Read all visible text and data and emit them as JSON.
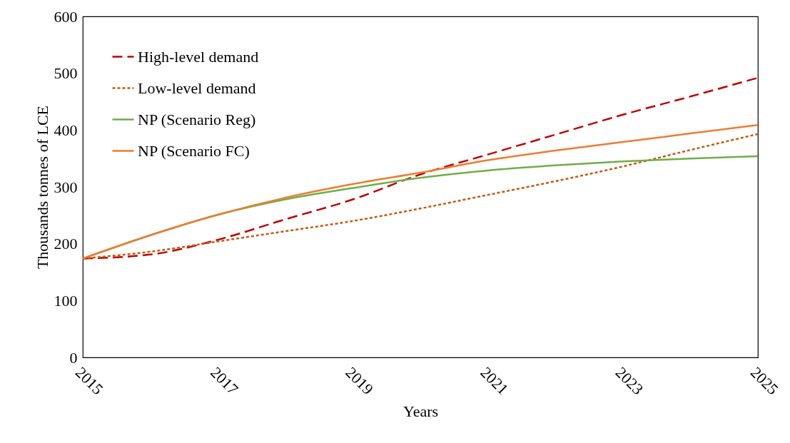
{
  "chart_data": {
    "type": "line",
    "xlabel": "Years",
    "ylabel": "Thousands tonnes of LCE",
    "x": [
      2015,
      2016,
      2017,
      2018,
      2019,
      2020,
      2021,
      2022,
      2023,
      2024,
      2025
    ],
    "series": [
      {
        "name": "High-level demand",
        "color": "#c00000",
        "line_style": "dashed",
        "values": [
          174,
          181,
          207,
          243,
          278,
          322,
          357,
          392,
          427,
          459,
          492
        ]
      },
      {
        "name": "Low-level demand",
        "color": "#c55a11",
        "line_style": "dotted",
        "values": [
          174,
          186,
          204,
          222,
          240,
          262,
          286,
          310,
          336,
          365,
          393
        ]
      },
      {
        "name": "NP (Scenario Reg)",
        "color": "#70ad47",
        "line_style": "solid",
        "values": [
          174,
          215,
          251,
          278,
          298,
          316,
          329,
          338,
          345,
          350,
          354
        ]
      },
      {
        "name": "NP (Scenario FC)",
        "color": "#ed7d31",
        "line_style": "solid",
        "values": [
          174,
          215,
          251,
          281,
          305,
          325,
          347,
          364,
          379,
          394,
          409
        ]
      }
    ],
    "xlim": [
      2015,
      2025
    ],
    "xticks": [
      2015,
      2017,
      2019,
      2021,
      2023,
      2025
    ],
    "ylim": [
      0,
      600
    ],
    "yticks": [
      0,
      100,
      200,
      300,
      400,
      500,
      600
    ],
    "legend": "top left"
  }
}
